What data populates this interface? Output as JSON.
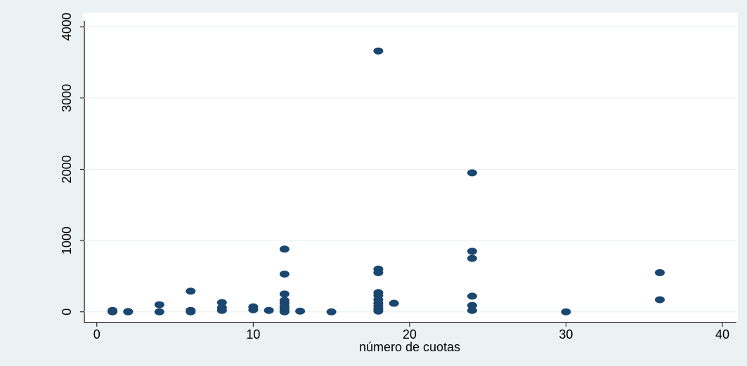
{
  "chart_data": {
    "type": "scatter",
    "x_label": "número de cuotas",
    "color": "#1a476f",
    "grid": true,
    "xlim": [
      -0.8,
      40.9
    ],
    "xticks": [
      0,
      10,
      20,
      30,
      40
    ],
    "ylim": [
      -150,
      4080
    ],
    "yticks": [
      0,
      1000,
      2000,
      3000,
      4000
    ],
    "series": [
      {
        "color": "#1a476f",
        "x": [
          1,
          1,
          1,
          2,
          2,
          4,
          4,
          6,
          6,
          6,
          8,
          8,
          8,
          10,
          10,
          11,
          12,
          12,
          12,
          12,
          12,
          12,
          12,
          12,
          12,
          13,
          15,
          18,
          18,
          18,
          18,
          18,
          18,
          18,
          18,
          18,
          18,
          19,
          24,
          24,
          24,
          24,
          24,
          24,
          30,
          36,
          36
        ],
        "values": [
          0,
          10,
          20,
          0,
          5,
          100,
          0,
          290,
          20,
          0,
          130,
          60,
          20,
          70,
          30,
          20,
          880,
          530,
          250,
          160,
          120,
          80,
          50,
          20,
          0,
          10,
          0,
          3660,
          600,
          550,
          270,
          230,
          170,
          120,
          80,
          40,
          10,
          120,
          1950,
          850,
          750,
          220,
          90,
          20,
          0,
          550,
          170
        ]
      }
    ]
  }
}
